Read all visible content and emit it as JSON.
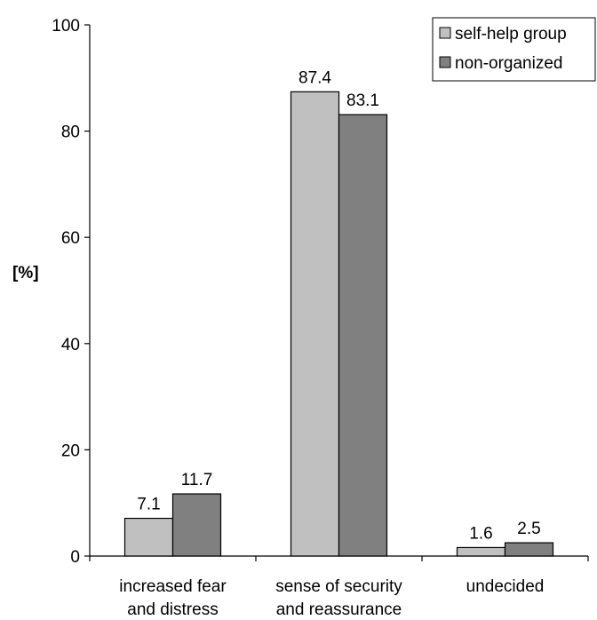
{
  "chart_data": {
    "type": "bar",
    "ylabel": "[%]",
    "ylim": [
      0,
      100
    ],
    "yticks": [
      0,
      20,
      40,
      60,
      80,
      100
    ],
    "grid": false,
    "legend_position": "top-right",
    "categories": [
      [
        "increased fear",
        "and distress"
      ],
      [
        "sense of security",
        "and reassurance"
      ],
      [
        "undecided"
      ]
    ],
    "series": [
      {
        "name": "self-help group",
        "color": "#c0c0c0",
        "values": [
          7.1,
          87.4,
          1.6
        ]
      },
      {
        "name": "non-organized",
        "color": "#808080",
        "values": [
          11.7,
          83.1,
          2.5
        ]
      }
    ]
  }
}
